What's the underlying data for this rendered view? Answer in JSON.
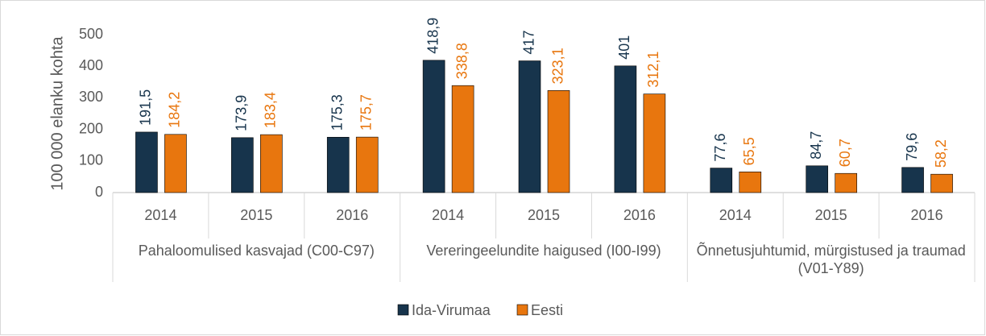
{
  "chart_data": {
    "type": "bar",
    "y_axis_label": "100 000 elanku kohta",
    "categories": [
      "2014",
      "2015",
      "2016",
      "2014",
      "2015",
      "2016",
      "2014",
      "2015",
      "2016"
    ],
    "groups": [
      "Pahaloomulised kasvajad (C00-C97)",
      "Vereringeelundite haigused (I00-I99)",
      "Õnnetusjuhtumid, mürgistused ja traumad (V01-Y89)"
    ],
    "series": [
      {
        "name": "Ida-Virumaa",
        "color": "#17344c",
        "values": [
          191.5,
          173.9,
          175.3,
          418.9,
          417,
          401,
          77.6,
          84.7,
          79.6
        ],
        "value_labels": [
          "191,5",
          "173,9",
          "175,3",
          "418,9",
          "417",
          "401",
          "77,6",
          "84,7",
          "79,6"
        ]
      },
      {
        "name": "Eesti",
        "color": "#e8760e",
        "values": [
          184.2,
          183.4,
          175.7,
          338.8,
          323.1,
          312.1,
          65.5,
          60.7,
          58.2
        ],
        "value_labels": [
          "184,2",
          "183,4",
          "175,7",
          "338,8",
          "323,1",
          "312,1",
          "65,5",
          "60,7",
          "58,2"
        ]
      }
    ],
    "ylim": [
      0,
      500
    ],
    "yticks": [
      0,
      100,
      200,
      300,
      400,
      500
    ],
    "grid": false,
    "legend": "bottom"
  }
}
